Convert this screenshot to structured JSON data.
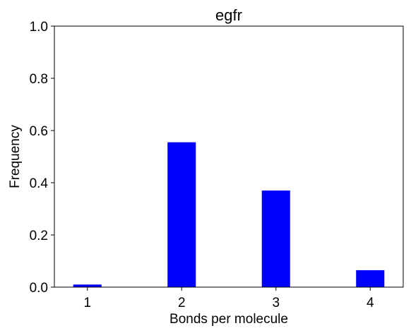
{
  "chart_data": {
    "type": "bar",
    "title": "egfr",
    "xlabel": "Bonds per molecule",
    "ylabel": "Frequency",
    "categories": [
      "1",
      "2",
      "3",
      "4"
    ],
    "x": [
      1,
      2,
      3,
      4
    ],
    "values": [
      0.01,
      0.555,
      0.37,
      0.065
    ],
    "xlim": [
      0.65,
      4.35
    ],
    "ylim": [
      0,
      1.0
    ],
    "yticks": [
      0.0,
      0.2,
      0.4,
      0.6,
      0.8,
      1.0
    ],
    "ytick_labels": [
      "0.0",
      "0.2",
      "0.4",
      "0.6",
      "0.8",
      "1.0"
    ],
    "xticks": [
      1,
      2,
      3,
      4
    ],
    "xtick_labels": [
      "1",
      "2",
      "3",
      "4"
    ],
    "bar_color": "#0000ff",
    "grid": false,
    "legend": "none"
  }
}
